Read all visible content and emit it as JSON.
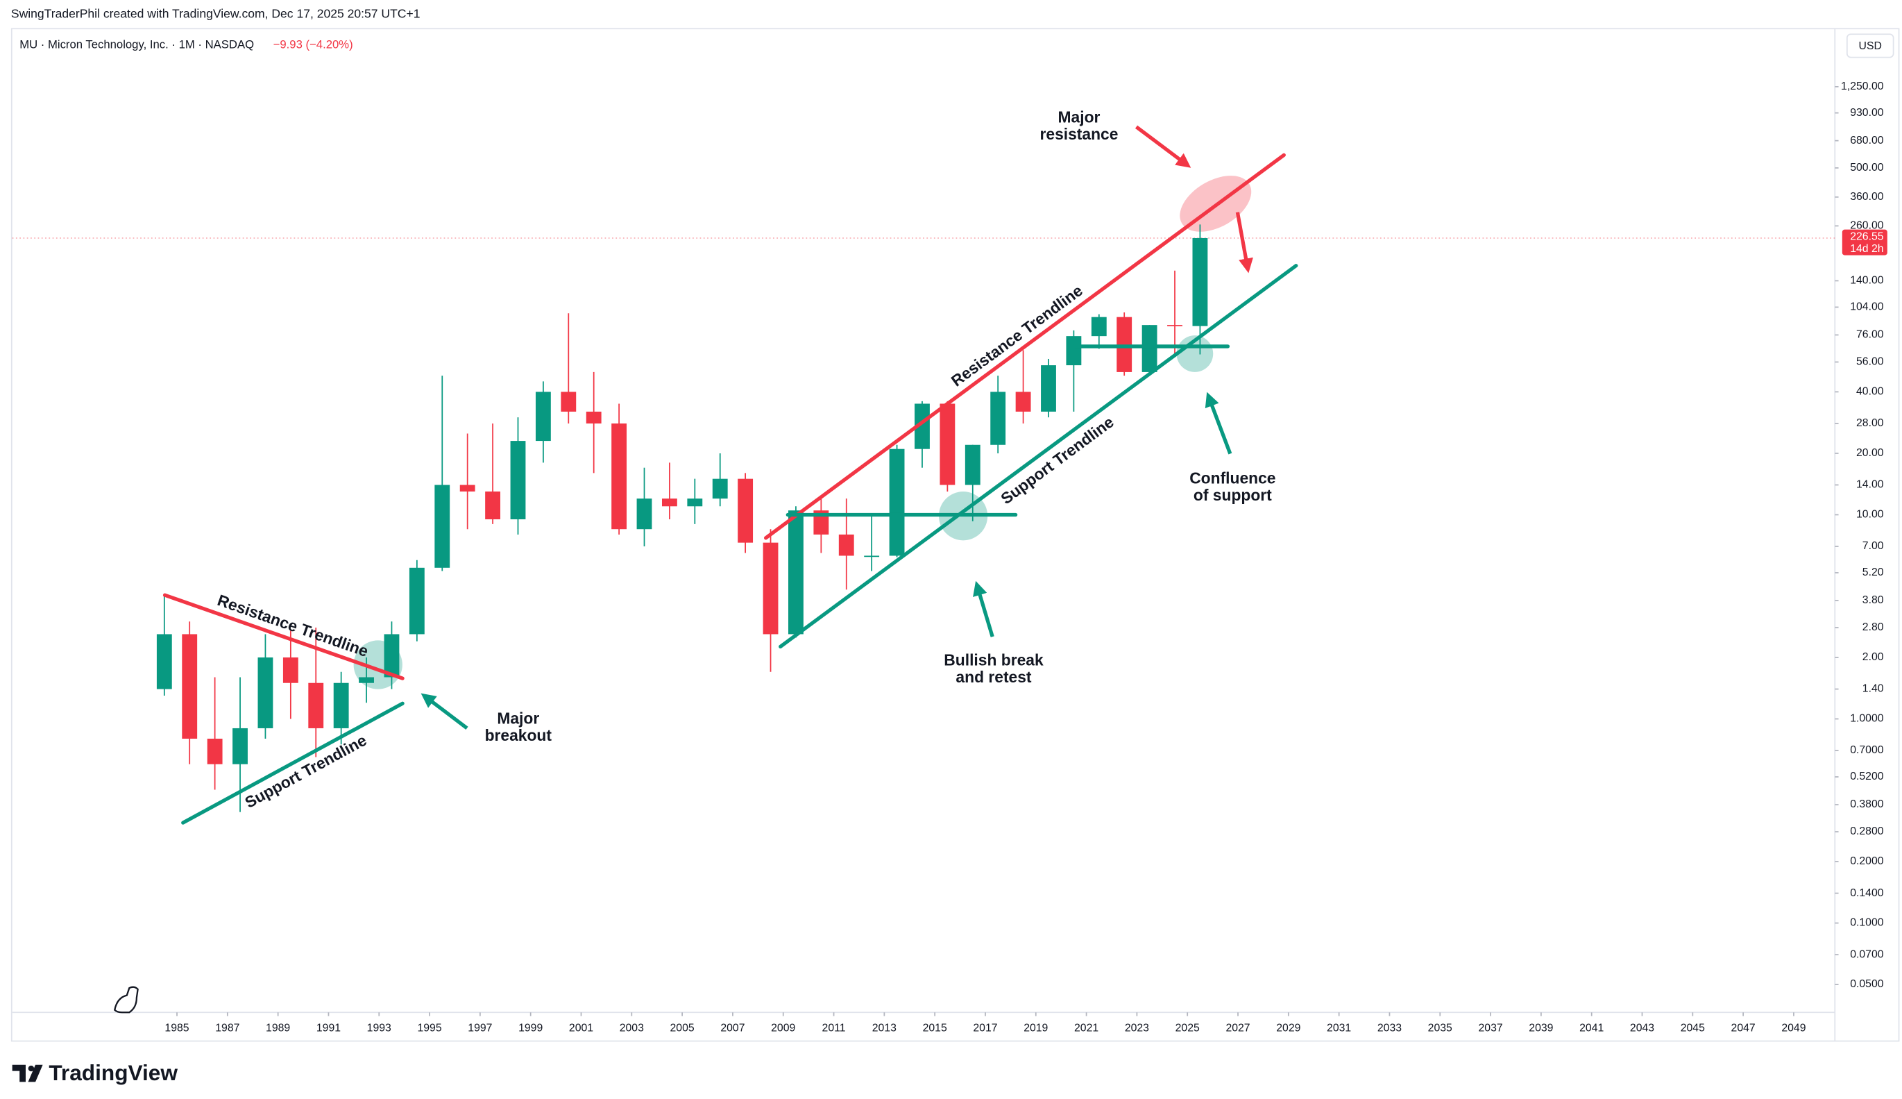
{
  "chart_data": {
    "type": "candlestick",
    "credit": "SwingTraderPhil created with TradingView.com, Dec 17, 2025 20:57 UTC+1",
    "title": "MU · Micron Technology, Inc. · 1M · NASDAQ",
    "subtitle": "−9.93 (−4.20%)",
    "currency": "USD",
    "brand": "TradingView",
    "log_scale": true,
    "up_color": "#089981",
    "down_color": "#f23645",
    "x": [
      1984,
      1985,
      1986,
      1987,
      1988,
      1989,
      1990,
      1991,
      1992,
      1993,
      1994,
      1995,
      1996,
      1997,
      1998,
      1999,
      2000,
      2001,
      2002,
      2003,
      2004,
      2005,
      2006,
      2007,
      2008,
      2009,
      2010,
      2011,
      2012,
      2013,
      2014,
      2015,
      2016,
      2017,
      2018,
      2019,
      2020,
      2021,
      2022,
      2023,
      2024,
      2025
    ],
    "open": [
      1.4,
      2.6,
      0.8,
      0.6,
      0.9,
      2.0,
      1.5,
      0.9,
      1.5,
      1.6,
      2.6,
      5.5,
      14,
      13,
      9.5,
      23,
      40,
      32,
      28,
      8.5,
      12,
      11,
      12,
      15,
      7.3,
      2.6,
      10.5,
      8,
      6.3,
      6.3,
      21,
      35,
      14,
      22,
      40,
      32,
      54,
      75,
      93,
      50,
      85,
      84
    ],
    "high": [
      4.0,
      3.0,
      1.6,
      1.6,
      2.6,
      2.7,
      2.8,
      1.7,
      2.0,
      3.0,
      6.0,
      48,
      25,
      28,
      30,
      45,
      97,
      50,
      35,
      17,
      18,
      15,
      20,
      16,
      8.5,
      11,
      12,
      12,
      10,
      22,
      36,
      36,
      22,
      48,
      64,
      58,
      80,
      96,
      98,
      85,
      157,
      264
    ],
    "low": [
      1.3,
      0.6,
      0.45,
      0.35,
      0.8,
      1.0,
      0.65,
      0.75,
      1.2,
      1.4,
      2.4,
      5.3,
      8.5,
      9,
      8,
      18,
      28,
      16,
      8,
      7,
      9.5,
      9,
      11,
      6.5,
      1.7,
      2.5,
      6.5,
      4.3,
      5.3,
      6.2,
      17,
      13,
      9.3,
      20,
      28,
      30,
      32,
      65,
      48,
      48,
      61,
      61
    ],
    "close": [
      2.6,
      0.8,
      0.6,
      0.9,
      2.0,
      1.5,
      0.9,
      1.5,
      1.6,
      2.6,
      5.5,
      14,
      13,
      9.5,
      23,
      40,
      32,
      28,
      8.5,
      12,
      11,
      12,
      15,
      7.3,
      2.6,
      10.5,
      8,
      6.3,
      6.3,
      21,
      35,
      14,
      22,
      40,
      32,
      54,
      75,
      93,
      50,
      85,
      84,
      226.55
    ],
    "last_price": {
      "value": 226.55,
      "countdown": "14d 2h"
    },
    "xlim": [
      1978.48,
      2050.63
    ],
    "ylim": [
      0.0365,
      2356
    ],
    "xticks": [
      1985,
      1987,
      1989,
      1991,
      1993,
      1995,
      1997,
      1999,
      2001,
      2003,
      2005,
      2007,
      2009,
      2011,
      2013,
      2015,
      2017,
      2019,
      2021,
      2023,
      2025,
      2027,
      2029,
      2031,
      2033,
      2035,
      2037,
      2039,
      2041,
      2043,
      2045,
      2047,
      2049
    ],
    "yticks": [
      {
        "value": 1250,
        "label": "1,250.00"
      },
      {
        "value": 930,
        "label": "930.00"
      },
      {
        "value": 680,
        "label": "680.00"
      },
      {
        "value": 500,
        "label": "500.00"
      },
      {
        "value": 360,
        "label": "360.00"
      },
      {
        "value": 260,
        "label": "260.00"
      },
      {
        "value": 140,
        "label": "140.00"
      },
      {
        "value": 104,
        "label": "104.00"
      },
      {
        "value": 76,
        "label": "76.00"
      },
      {
        "value": 56,
        "label": "56.00"
      },
      {
        "value": 40,
        "label": "40.00"
      },
      {
        "value": 28,
        "label": "28.00"
      },
      {
        "value": 20,
        "label": "20.00"
      },
      {
        "value": 14,
        "label": "14.00"
      },
      {
        "value": 10,
        "label": "10.00"
      },
      {
        "value": 7,
        "label": "7.00"
      },
      {
        "value": 5.2,
        "label": "5.20"
      },
      {
        "value": 3.8,
        "label": "3.80"
      },
      {
        "value": 2.8,
        "label": "2.80"
      },
      {
        "value": 2,
        "label": "2.00"
      },
      {
        "value": 1.4,
        "label": "1.40"
      },
      {
        "value": 1,
        "label": "1.0000"
      },
      {
        "value": 0.7,
        "label": "0.7000"
      },
      {
        "value": 0.52,
        "label": "0.5200"
      },
      {
        "value": 0.38,
        "label": "0.3800"
      },
      {
        "value": 0.28,
        "label": "0.2800"
      },
      {
        "value": 0.2,
        "label": "0.2000"
      },
      {
        "value": 0.14,
        "label": "0.1400"
      },
      {
        "value": 0.1,
        "label": "0.1000"
      },
      {
        "value": 0.07,
        "label": "0.0700"
      },
      {
        "value": 0.05,
        "label": "0.0500"
      }
    ],
    "trendlines": [
      {
        "label": "Resistance Trendline",
        "color": "#f23645",
        "x": [
          1984.52,
          1993.93
        ],
        "y": [
          4.04,
          1.58
        ]
      },
      {
        "label": "Support Trendline",
        "color": "#089981",
        "x": [
          1985.24,
          1993.93
        ],
        "y": [
          0.31,
          1.19
        ]
      },
      {
        "label": "Resistance Trendline",
        "color": "#f23645",
        "x": [
          2008.31,
          2028.82
        ],
        "y": [
          7.7,
          578
        ]
      },
      {
        "label": "Support Trendline",
        "color": "#089981",
        "x": [
          2008.89,
          2029.3
        ],
        "y": [
          2.26,
          166
        ]
      },
      {
        "color": "#089981",
        "x": [
          2009.18,
          2018.2
        ],
        "y": [
          10.0,
          10.0
        ]
      },
      {
        "color": "#089981",
        "x": [
          2020.52,
          2026.6
        ],
        "y": [
          66.8,
          66.8
        ]
      }
    ],
    "annotations": [
      [
        "Major",
        "resistance"
      ],
      [
        "Major",
        "breakout"
      ],
      [
        "Bullish break",
        "and retest"
      ],
      [
        "Confluence",
        "of support"
      ]
    ]
  }
}
